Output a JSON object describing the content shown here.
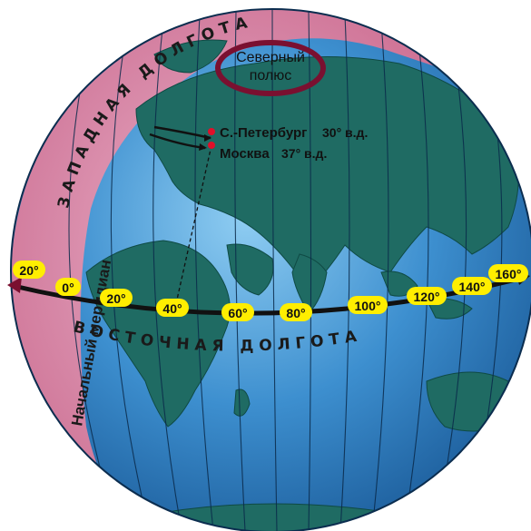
{
  "colors": {
    "ocean": "#2f7fbf",
    "ocean_light": "#6fb6e6",
    "land": "#1f6b63",
    "land_light": "#3e8f86",
    "western_band": "#f08aa8",
    "label_bg": "#ffee00",
    "axis": "#111111",
    "pole_ring": "#7a1030",
    "cities": "#e0102a"
  },
  "labels": {
    "north_pole_line1": "Северный",
    "north_pole_line2": "полюс",
    "west_longitude": "ЗАПАДНАЯ ДОЛГОТА",
    "east_longitude": "ВОСТОЧНАЯ ДОЛГОТА",
    "prime_meridian": "Начальный меридиан",
    "city_spb": "С.-Петербург",
    "city_spb_lon": "30° в.д.",
    "city_moscow": "Москва",
    "city_moscow_lon": "37° в.д."
  },
  "longitude_labels": [
    {
      "text": "20°",
      "side": "west"
    },
    {
      "text": "0°",
      "side": "prime"
    },
    {
      "text": "20°",
      "side": "east"
    },
    {
      "text": "40°",
      "side": "east"
    },
    {
      "text": "60°",
      "side": "east"
    },
    {
      "text": "80°",
      "side": "east"
    },
    {
      "text": "100°",
      "side": "east"
    },
    {
      "text": "120°",
      "side": "east"
    },
    {
      "text": "140°",
      "side": "east"
    },
    {
      "text": "160°",
      "side": "east"
    }
  ]
}
